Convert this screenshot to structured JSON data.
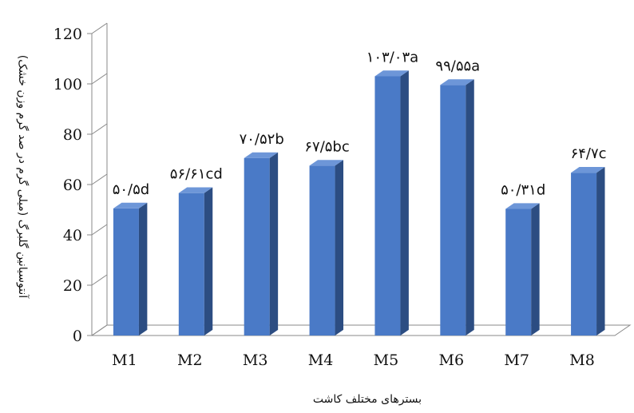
{
  "chart_data": {
    "type": "bar",
    "style": "3d-column",
    "categories": [
      "M1",
      "M2",
      "M3",
      "M4",
      "M5",
      "M6",
      "M7",
      "M8"
    ],
    "values": [
      50.5,
      56.61,
      70.52,
      67.5,
      103.03,
      99.55,
      50.31,
      64.7
    ],
    "data_labels": [
      "۵۰/۵d",
      "۵۶/۶۱cd",
      "۷۰/۵۲b",
      "۶۷/۵bc",
      "۱۰۳/۰۳a",
      "۹۹/۵۵a",
      "۵۰/۳۱d",
      "۶۴/۷c"
    ],
    "xlabel": "بسترهای مختلف کاشت",
    "ylabel": "آنتوسیانین گلبرگ (میلی گرم در صد گرم وزن خشک)",
    "ylim": [
      0,
      120
    ],
    "yticks": [
      0,
      20,
      40,
      60,
      80,
      100,
      120
    ],
    "grid": false,
    "legend": "none",
    "colors": {
      "bar_front": "#4a7ac7",
      "bar_side": "#2c4d82",
      "bar_top": "#6d96d8",
      "axis": "#8a8a8a"
    }
  }
}
